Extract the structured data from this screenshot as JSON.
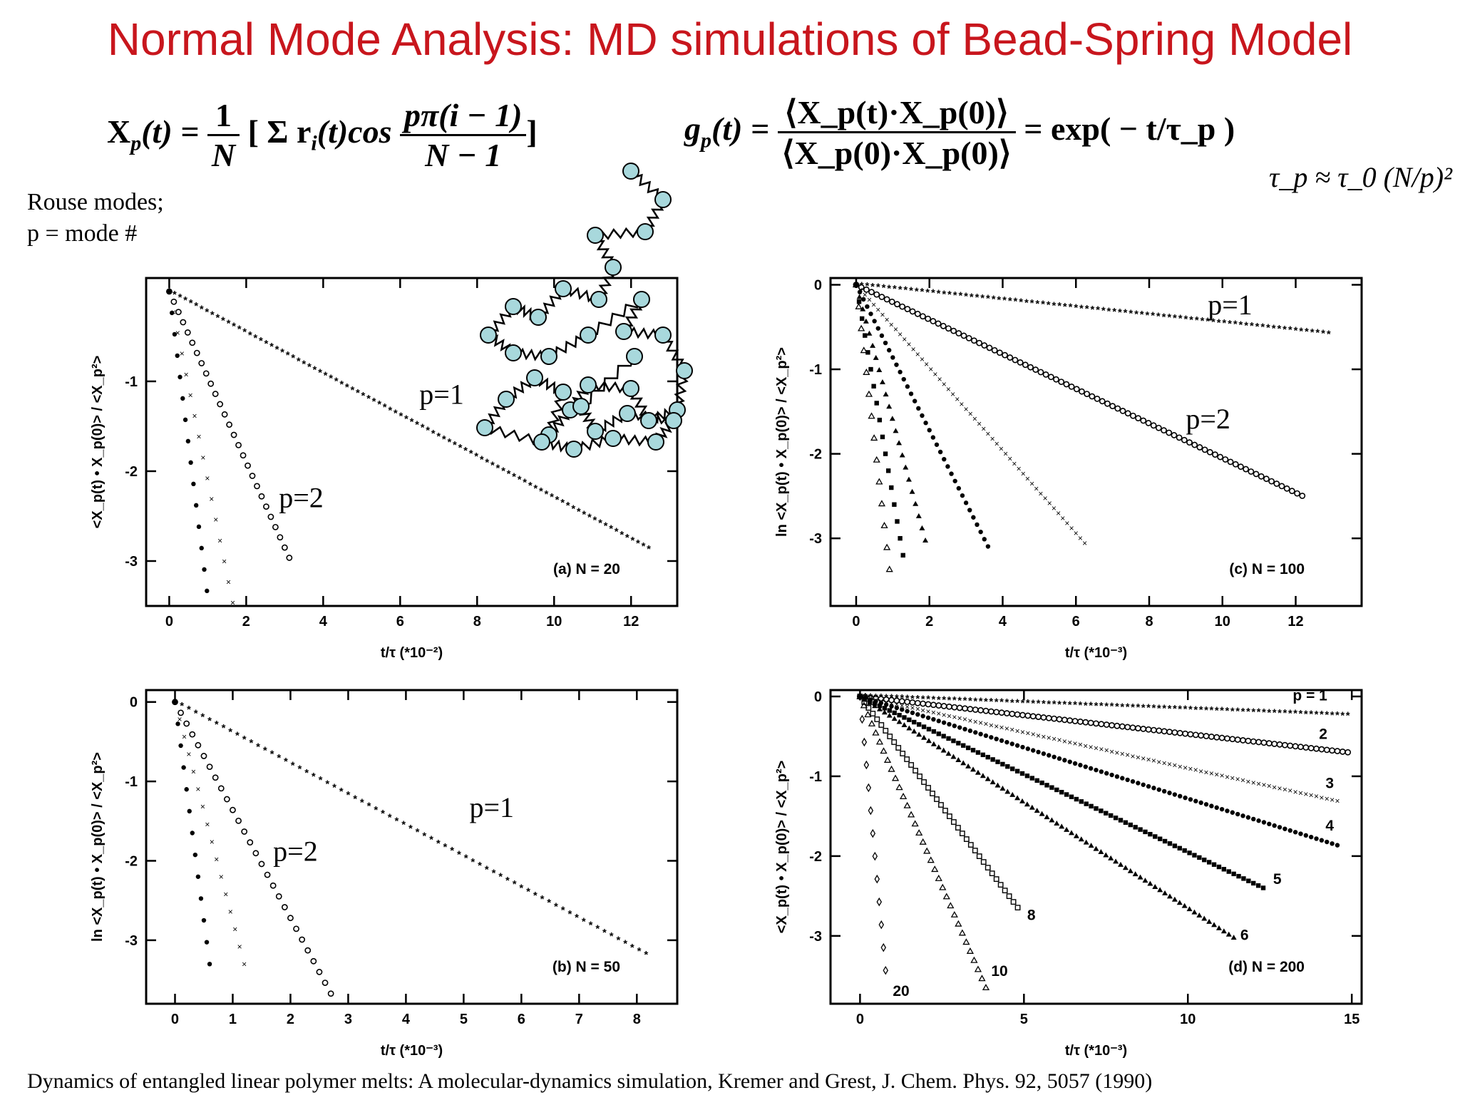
{
  "title": "Normal Mode Analysis: MD simulations of Bead-Spring Model",
  "equations": {
    "xp_lhs": "X",
    "xp_sub": "p",
    "xp_arg": "(t) =",
    "xp_frac_num": "1",
    "xp_frac_den": "N",
    "xp_sum": "[ Σ r",
    "xp_sum_sub": "i",
    "xp_sum_arg": "(t)cos",
    "xp_cos_num": "pπ(i − 1)",
    "xp_cos_den": "N − 1",
    "xp_close": "]",
    "gp_lhs": "g",
    "gp_sub": "p",
    "gp_arg": "(t) =",
    "gp_num": "⟨X_p(t)·X_p(0)⟩",
    "gp_den": "⟨X_p(0)·X_p(0)⟩",
    "gp_rhs": "= exp( − t/τ_p )",
    "tau": "τ_p ≈ τ_0 (N/p)²"
  },
  "notes": {
    "line1": "Rouse modes;",
    "line2": "p = mode #"
  },
  "citation": "Dynamics of entangled linear polymer melts: A molecular-dynamics  simulation, Kremer and Grest, J. Chem. Phys. 92, 5057 (1990)",
  "colors": {
    "title": "#c8161d",
    "bead": "#a8d8dc",
    "ink": "#000000"
  },
  "chart_data": [
    {
      "type": "scatter",
      "panel_label": "(a) N = 20",
      "xlabel": "t/τ (*10⁻²)",
      "ylabel": "<X_p(t) • X_p(0)> / <X_p²>",
      "xlim": [
        -0.6,
        13.2
      ],
      "ylim": [
        -3.5,
        0.15
      ],
      "xticks": [
        0,
        2,
        4,
        6,
        8,
        10,
        12
      ],
      "yticks": [
        -1,
        -2,
        -3
      ],
      "annotations": [
        {
          "text": "p=1",
          "x": 6.5,
          "y": -1.25
        },
        {
          "text": "p=2",
          "x": 2.85,
          "y": -2.4
        }
      ],
      "series": [
        {
          "marker": "star",
          "slope": -0.23,
          "xmax": 12.5,
          "step": 0.14
        },
        {
          "marker": "circle",
          "slope": -0.95,
          "xmax": 3.15,
          "step": 0.12
        },
        {
          "marker": "cross",
          "slope": -2.1,
          "xmax": 1.7,
          "step": 0.11
        },
        {
          "marker": "dot",
          "slope": -3.4,
          "xmax": 1.0,
          "step": 0.07
        }
      ]
    },
    {
      "type": "scatter",
      "panel_label": "(b) N = 50",
      "xlabel": "t/τ (*10⁻³)",
      "ylabel": "ln <X_p(t) • X_p(0)> / <X_p²>",
      "xlim": [
        -0.5,
        8.7
      ],
      "ylim": [
        -3.8,
        0.15
      ],
      "xticks": [
        0,
        1,
        2,
        3,
        4,
        5,
        6,
        7,
        8
      ],
      "yticks": [
        0,
        -1,
        -2,
        -3
      ],
      "annotations": [
        {
          "text": "p=1",
          "x": 5.1,
          "y": -1.45
        },
        {
          "text": "p=2",
          "x": 1.7,
          "y": -2.0
        }
      ],
      "series": [
        {
          "marker": "star",
          "slope": -0.39,
          "xmax": 8.25,
          "step": 0.12
        },
        {
          "marker": "circle",
          "slope": -1.36,
          "xmax": 2.7,
          "step": 0.1
        },
        {
          "marker": "cross",
          "slope": -2.75,
          "xmax": 1.25,
          "step": 0.08
        },
        {
          "marker": "dot",
          "slope": -5.5,
          "xmax": 0.6,
          "step": 0.05
        }
      ]
    },
    {
      "type": "scatter",
      "panel_label": "(c) N = 100",
      "xlabel": "t/τ (*10⁻³)",
      "ylabel": "ln <X_p(t) • X_p(0)> / <X_p²>",
      "xlim": [
        -0.7,
        13.8
      ],
      "ylim": [
        -3.8,
        0.08
      ],
      "xticks": [
        0,
        2,
        4,
        6,
        8,
        10,
        12
      ],
      "yticks": [
        0,
        -1,
        -2,
        -3
      ],
      "annotations": [
        {
          "text": "p=1",
          "x": 9.6,
          "y": -0.35
        },
        {
          "text": "p=2",
          "x": 9.0,
          "y": -1.7
        }
      ],
      "series": [
        {
          "marker": "star",
          "slope": -0.045,
          "xmax": 13.0,
          "step": 0.15
        },
        {
          "marker": "circle",
          "slope": -0.205,
          "xmax": 12.2,
          "step": 0.14
        },
        {
          "marker": "cross",
          "slope": -0.49,
          "xmax": 6.3,
          "step": 0.12
        },
        {
          "marker": "dot",
          "slope": -0.86,
          "xmax": 3.6,
          "step": 0.1
        },
        {
          "marker": "triangle",
          "slope": -1.6,
          "xmax": 1.9,
          "step": 0.09
        },
        {
          "marker": "square",
          "slope": -2.5,
          "xmax": 1.3,
          "step": 0.08
        },
        {
          "marker": "triangle-open",
          "slope": -3.7,
          "xmax": 0.95,
          "step": 0.07
        }
      ]
    },
    {
      "type": "scatter",
      "panel_label": "(d) N = 200",
      "xlabel": "t/τ (*10⁻³)",
      "ylabel": "<X_p(t) • X_p(0)> / <X_p²>",
      "xlim": [
        -0.9,
        15.3
      ],
      "ylim": [
        -3.85,
        0.08
      ],
      "xticks": [
        0,
        5,
        10,
        15
      ],
      "yticks": [
        0,
        -1,
        -2,
        -3
      ],
      "annotations": [
        {
          "text": "p = 1",
          "x": 13.2,
          "y": -0.05
        },
        {
          "text": "2",
          "x": 14.0,
          "y": -0.53
        },
        {
          "text": "3",
          "x": 14.2,
          "y": -1.15
        },
        {
          "text": "4",
          "x": 14.2,
          "y": -1.68
        },
        {
          "text": "5",
          "x": 12.6,
          "y": -2.35
        },
        {
          "text": "6",
          "x": 11.6,
          "y": -3.05
        },
        {
          "text": "8",
          "x": 5.1,
          "y": -2.8
        },
        {
          "text": "10",
          "x": 4.0,
          "y": -3.5
        },
        {
          "text": "20",
          "x": 1.0,
          "y": -3.75
        }
      ],
      "series": [
        {
          "marker": "star",
          "slope": -0.016,
          "xmax": 15.0,
          "step": 0.16
        },
        {
          "marker": "circle",
          "slope": -0.047,
          "xmax": 14.9,
          "step": 0.16
        },
        {
          "marker": "cross",
          "slope": -0.09,
          "xmax": 14.7,
          "step": 0.16
        },
        {
          "marker": "dot",
          "slope": -0.128,
          "xmax": 14.7,
          "step": 0.16
        },
        {
          "marker": "square",
          "slope": -0.195,
          "xmax": 12.3,
          "step": 0.15
        },
        {
          "marker": "triangle",
          "slope": -0.265,
          "xmax": 11.5,
          "step": 0.15
        },
        {
          "marker": "square-open",
          "slope": -0.55,
          "xmax": 4.9,
          "step": 0.13
        },
        {
          "marker": "triangle-open",
          "slope": -0.95,
          "xmax": 3.9,
          "step": 0.12
        },
        {
          "marker": "diamond",
          "slope": -4.4,
          "xmax": 0.8,
          "step": 0.065
        }
      ]
    }
  ]
}
